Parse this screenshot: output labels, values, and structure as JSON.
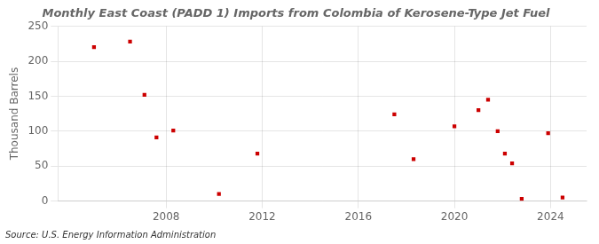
{
  "chart_data": {
    "type": "scatter",
    "title": "Monthly East Coast (PADD 1) Imports from Colombia of Kerosene-Type Jet Fuel",
    "ylabel": "Thousand Barrels",
    "annotation": "Source: U.S. Energy Information Administration",
    "x": [
      2005.0,
      2006.5,
      2007.1,
      2007.6,
      2008.3,
      2010.2,
      2011.8,
      2017.5,
      2018.3,
      2020.0,
      2021.0,
      2021.4,
      2021.8,
      2022.1,
      2022.4,
      2022.8,
      2023.9,
      2024.5
    ],
    "values": [
      220,
      228,
      152,
      91,
      101,
      10,
      68,
      124,
      60,
      107,
      130,
      145,
      100,
      68,
      54,
      3,
      97,
      5
    ],
    "color": "#cc0000",
    "marker": "square",
    "xlim": [
      2003.5,
      2025.5
    ],
    "xticks": [
      2008,
      2012,
      2016,
      2020,
      2024
    ],
    "ylim": [
      0,
      250
    ],
    "yticks": [
      0,
      50,
      100,
      150,
      200,
      250
    ],
    "grid": true
  }
}
